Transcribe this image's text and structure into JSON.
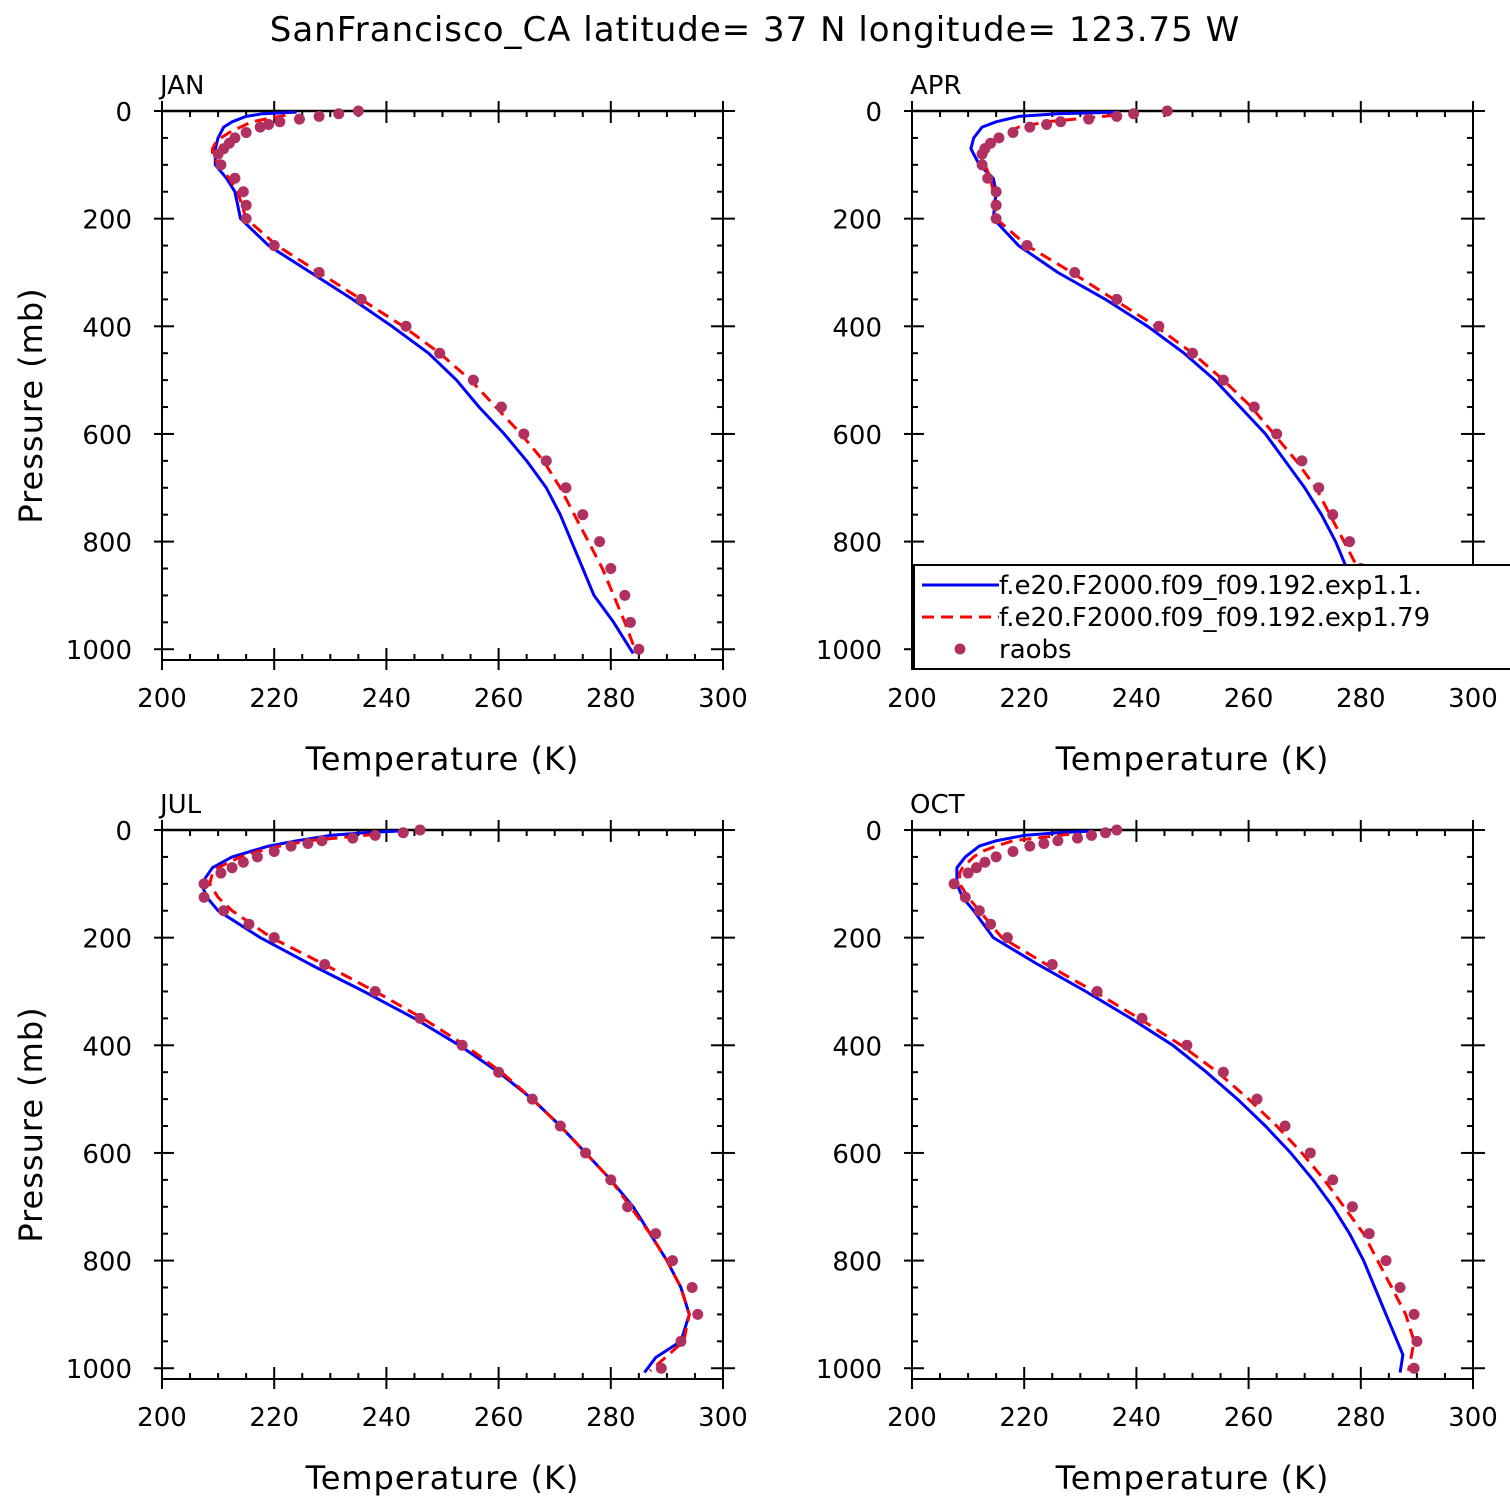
{
  "title": "SanFrancisco_CA  latitude= 37 N longitude= 123.75 W",
  "colors": {
    "model1": "#0000ff",
    "model2": "#ff0000",
    "obs": "#b03060"
  },
  "chart_data": [
    {
      "type": "line",
      "panel_label": "JAN",
      "xlabel": "Temperature (K)",
      "ylabel": "Pressure (mb)",
      "xlim": [
        200,
        300
      ],
      "ylim": [
        1020,
        0
      ],
      "xticks": [
        "200",
        "220",
        "240",
        "260",
        "280",
        "300"
      ],
      "yticks": [
        "0",
        "200",
        "400",
        "600",
        "800",
        "1000"
      ],
      "series": [
        {
          "pressure": [
            2,
            5,
            10,
            20,
            30,
            50,
            70,
            100,
            125,
            150,
            200,
            250,
            300,
            350,
            400,
            450,
            500,
            550,
            600,
            650,
            700,
            750,
            800,
            850,
            900,
            950,
            1008
          ],
          "temperature": [
            224,
            218,
            215,
            212.5,
            211,
            210,
            209.5,
            209.5,
            211.5,
            213,
            214,
            219,
            226.5,
            234,
            241,
            247.5,
            252.5,
            256.5,
            261,
            265,
            268.5,
            271,
            273,
            275,
            277,
            280.5,
            284
          ]
        },
        {
          "pressure": [
            8,
            20,
            30,
            40,
            50,
            60,
            70,
            80,
            100,
            125,
            150,
            200,
            250,
            300,
            350,
            400,
            450,
            500,
            550,
            600,
            650,
            700,
            750,
            800,
            850,
            900,
            950,
            1005
          ],
          "temperature": [
            222,
            216,
            214,
            212,
            210.5,
            209.5,
            209,
            209,
            210,
            212,
            213.5,
            215,
            220.5,
            228,
            235.5,
            243,
            249.5,
            255,
            259.5,
            264,
            268,
            271,
            273.5,
            276,
            278.5,
            280.5,
            282.5,
            284.5
          ]
        },
        {
          "pressure": [
            0,
            5,
            10,
            15,
            20,
            25,
            30,
            40,
            50,
            60,
            70,
            80,
            100,
            125,
            150,
            175,
            200,
            250,
            300,
            350,
            400,
            450,
            500,
            550,
            600,
            650,
            700,
            750,
            800,
            850,
            900,
            950,
            1000
          ],
          "temperature": [
            235,
            231.5,
            228,
            224.5,
            221,
            219,
            217.5,
            215,
            213,
            212,
            211,
            210,
            210.5,
            213,
            214.5,
            215,
            215,
            220,
            228,
            235.5,
            243.5,
            249.5,
            255.5,
            260.5,
            264.5,
            268.5,
            272,
            275,
            278,
            280,
            282.5,
            283.5,
            285
          ]
        }
      ]
    },
    {
      "type": "line",
      "panel_label": "APR",
      "xlabel": "Temperature (K)",
      "ylabel": "",
      "xlim": [
        200,
        300
      ],
      "ylim": [
        1020,
        0
      ],
      "xticks": [
        "200",
        "220",
        "240",
        "260",
        "280",
        "300"
      ],
      "yticks": [
        "0",
        "200",
        "400",
        "600",
        "800",
        "1000"
      ],
      "legend": {
        "position": "lower-right",
        "entries": [
          "f.e20.F2000.f09_f09.192.exp1.1.",
          "f.e20.F2000.f09_f09.192.exp1.79",
          "raobs"
        ]
      },
      "series": [
        {
          "pressure": [
            2,
            5,
            10,
            20,
            30,
            50,
            70,
            100,
            125,
            150,
            200,
            250,
            300,
            350,
            400,
            450,
            500,
            550,
            600,
            650,
            700,
            750,
            800,
            850,
            900,
            950,
            1008
          ],
          "temperature": [
            237,
            226,
            219,
            215,
            212.5,
            211,
            210.5,
            212,
            214.5,
            215,
            214.5,
            219,
            226,
            234.5,
            242,
            248.5,
            254,
            258.5,
            263,
            266.5,
            270,
            273,
            275.5,
            277.5,
            279.5,
            282,
            284.5
          ]
        },
        {
          "pressure": [
            8,
            20,
            30,
            40,
            50,
            60,
            70,
            80,
            100,
            125,
            150,
            200,
            250,
            300,
            350,
            400,
            450,
            500,
            550,
            600,
            650,
            700,
            750,
            800,
            850,
            900,
            950,
            1005
          ],
          "temperature": [
            236,
            224,
            219,
            217,
            215.5,
            214,
            213,
            212.5,
            213,
            214,
            214.5,
            215,
            220.5,
            228.5,
            236,
            243.5,
            250,
            255.5,
            260.5,
            264.5,
            268.5,
            272,
            274.5,
            277,
            279.5,
            281.5,
            283.5,
            285
          ]
        },
        {
          "pressure": [
            0,
            5,
            10,
            15,
            20,
            25,
            30,
            40,
            50,
            60,
            70,
            80,
            100,
            125,
            150,
            175,
            200,
            250,
            300,
            350,
            400,
            450,
            500,
            550,
            600,
            650,
            700,
            750,
            800,
            850,
            900,
            950,
            1000
          ],
          "temperature": [
            245.5,
            239.5,
            236.5,
            231.5,
            226.5,
            224,
            221,
            218,
            215.5,
            214,
            213,
            212.5,
            212.5,
            213.5,
            215,
            215,
            215,
            220.5,
            229,
            236.5,
            244,
            250,
            255.5,
            261,
            265,
            269.5,
            272.5,
            275,
            278,
            280,
            282.5,
            284.5,
            285.5
          ]
        }
      ]
    },
    {
      "type": "line",
      "panel_label": "JUL",
      "xlabel": "Temperature (K)",
      "ylabel": "Pressure (mb)",
      "xlim": [
        200,
        300
      ],
      "ylim": [
        1020,
        0
      ],
      "xticks": [
        "200",
        "220",
        "240",
        "260",
        "280",
        "300"
      ],
      "yticks": [
        "0",
        "200",
        "400",
        "600",
        "800",
        "1000"
      ],
      "series": [
        {
          "pressure": [
            2,
            5,
            10,
            20,
            30,
            50,
            70,
            100,
            125,
            150,
            200,
            250,
            300,
            350,
            400,
            450,
            500,
            550,
            600,
            650,
            700,
            750,
            800,
            850,
            900,
            950,
            980,
            1008
          ],
          "temperature": [
            242,
            236,
            230,
            224,
            219,
            212.5,
            209,
            207,
            208,
            210,
            217.5,
            226.5,
            236,
            245,
            253,
            260,
            266,
            271,
            275.5,
            280,
            284,
            287,
            290,
            292.5,
            294,
            292.5,
            288,
            286
          ]
        },
        {
          "pressure": [
            8,
            20,
            30,
            40,
            50,
            60,
            70,
            80,
            100,
            125,
            150,
            200,
            250,
            300,
            350,
            400,
            450,
            500,
            550,
            600,
            650,
            700,
            750,
            800,
            850,
            900,
            950,
            1005
          ],
          "temperature": [
            238,
            226,
            221,
            217,
            214,
            212,
            210,
            209,
            208.5,
            210,
            212.5,
            219.5,
            229,
            238,
            246.5,
            254,
            260.5,
            266,
            271,
            275.5,
            280,
            283.5,
            287,
            290,
            292.5,
            294,
            293,
            287
          ]
        },
        {
          "pressure": [
            0,
            5,
            10,
            15,
            20,
            25,
            30,
            40,
            50,
            60,
            70,
            80,
            100,
            125,
            150,
            175,
            200,
            250,
            300,
            350,
            400,
            450,
            500,
            550,
            600,
            650,
            700,
            750,
            800,
            850,
            900,
            950,
            1000
          ],
          "temperature": [
            246,
            243,
            238,
            234,
            228.5,
            226,
            223,
            220,
            217,
            214.5,
            212.5,
            210.5,
            207.5,
            207.5,
            211,
            215.5,
            220,
            229,
            238,
            246,
            253.5,
            260,
            266,
            271,
            275.5,
            280,
            283,
            288,
            291,
            294.5,
            295.5,
            292.5,
            289
          ]
        }
      ]
    },
    {
      "type": "line",
      "panel_label": "OCT",
      "xlabel": "Temperature (K)",
      "ylabel": "",
      "xlim": [
        200,
        300
      ],
      "ylim": [
        1020,
        0
      ],
      "xticks": [
        "200",
        "220",
        "240",
        "260",
        "280",
        "300"
      ],
      "yticks": [
        "0",
        "200",
        "400",
        "600",
        "800",
        "1000"
      ],
      "series": [
        {
          "pressure": [
            2,
            5,
            10,
            20,
            30,
            50,
            70,
            100,
            125,
            150,
            200,
            250,
            300,
            350,
            400,
            450,
            500,
            550,
            600,
            650,
            700,
            750,
            800,
            850,
            900,
            950,
            975,
            1008
          ],
          "temperature": [
            232,
            226,
            220,
            215,
            212,
            209.5,
            208,
            208,
            209,
            211,
            214.5,
            222.5,
            231,
            239,
            246.5,
            252.5,
            258,
            263,
            267.5,
            271.5,
            275,
            278,
            280.5,
            282.5,
            284.5,
            286.5,
            287.5,
            287
          ]
        },
        {
          "pressure": [
            8,
            20,
            30,
            40,
            50,
            60,
            70,
            80,
            100,
            125,
            150,
            200,
            250,
            300,
            350,
            400,
            450,
            500,
            550,
            600,
            650,
            700,
            750,
            800,
            850,
            900,
            950,
            1005
          ],
          "temperature": [
            228,
            218,
            215,
            212.5,
            211,
            210,
            209,
            208.5,
            208.5,
            210,
            212,
            216,
            224,
            232.5,
            240.5,
            248,
            254.5,
            260,
            265,
            269.5,
            273.5,
            277,
            280.5,
            283,
            285.5,
            288,
            289.5,
            288.5
          ]
        },
        {
          "pressure": [
            0,
            5,
            10,
            15,
            20,
            25,
            30,
            40,
            50,
            60,
            70,
            80,
            100,
            125,
            150,
            175,
            200,
            250,
            300,
            350,
            400,
            450,
            500,
            550,
            600,
            650,
            700,
            750,
            800,
            850,
            900,
            950,
            1000
          ],
          "temperature": [
            236.5,
            234.5,
            232,
            229.5,
            226,
            223.5,
            221,
            218,
            215,
            213,
            211.5,
            210,
            207.5,
            209.5,
            212,
            214,
            217,
            225,
            233,
            241,
            249,
            255.5,
            261.5,
            266.5,
            271,
            275,
            278.5,
            281.5,
            284.5,
            287,
            289.5,
            290,
            289.5
          ]
        }
      ]
    }
  ]
}
